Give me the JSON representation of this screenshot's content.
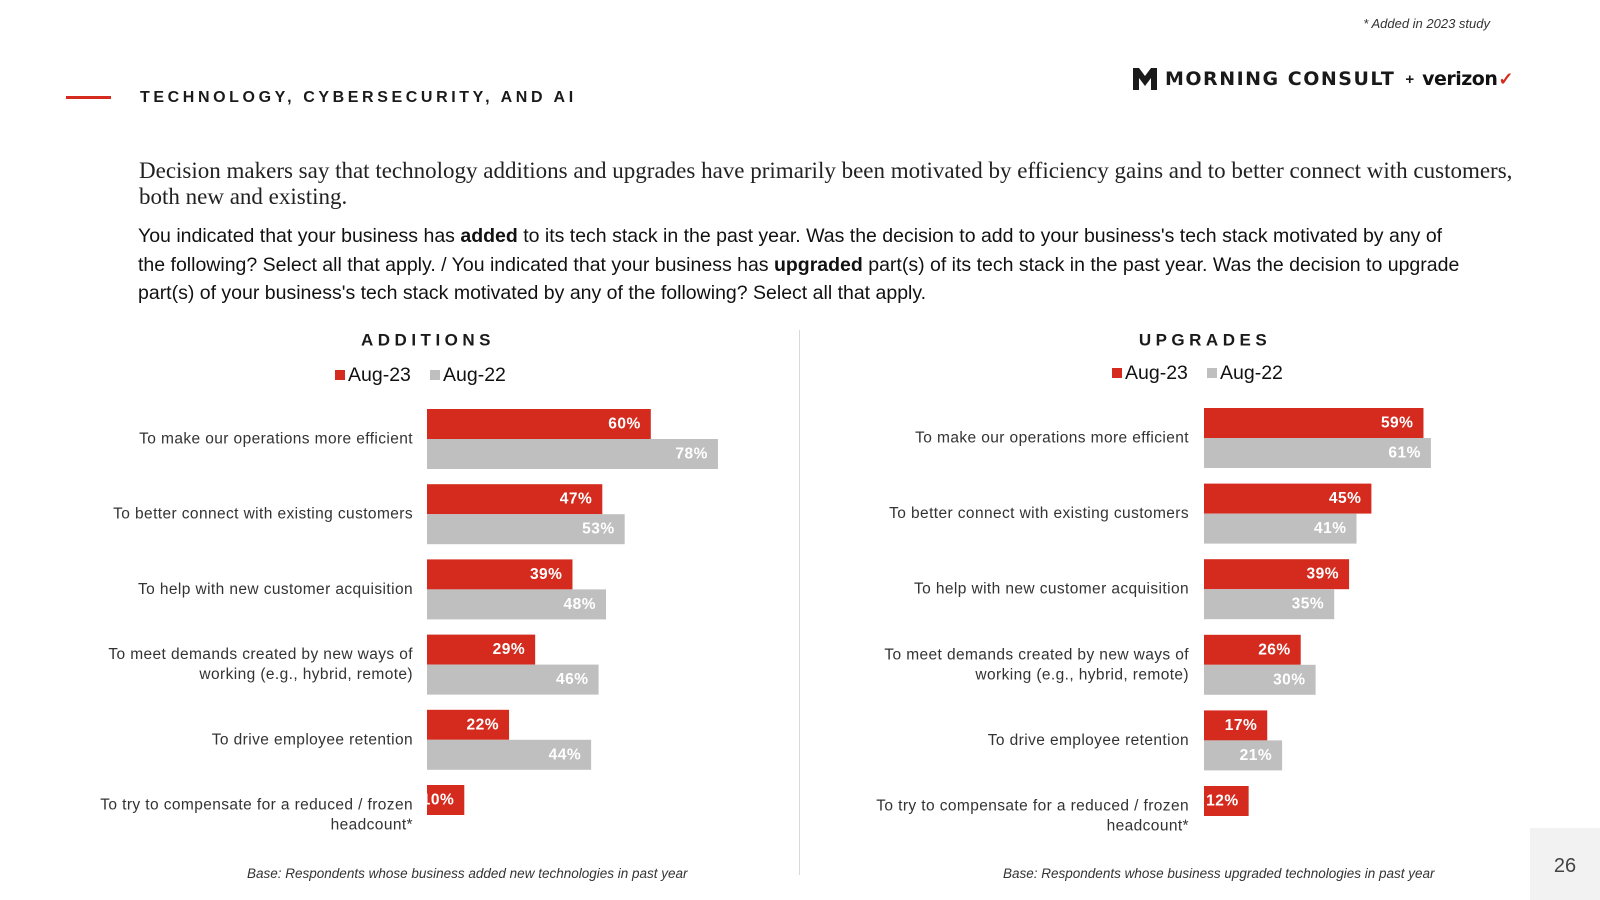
{
  "header": {
    "footnote": "* Added in 2023 study",
    "logo_brand": "MORNING CONSULT",
    "logo_plus": "+",
    "logo_partner": "verizon",
    "logo_check": "✓",
    "section_title": "TECHNOLOGY, CYBERSECURITY, AND AI"
  },
  "headline": "Decision makers say that technology additions and upgrades have primarily been motivated by efficiency gains and to better connect with customers, both new and existing.",
  "question": {
    "p1": "You indicated that your business has ",
    "b1": "added",
    "p2": " to its tech stack in the past year. Was the decision to add to your business's tech stack motivated by any of the following? Select all that apply. / You indicated that your business has ",
    "b2": "upgraded",
    "p3": " part(s) of its tech stack in the past year. Was the decision to upgrade part(s) of your business's tech stack motivated by any of the following? Select all that apply."
  },
  "colors": {
    "aug23": "#d52b1e",
    "aug22": "#bfbfbf",
    "accent": "#d52b1e"
  },
  "chart_data": [
    {
      "type": "bar",
      "orientation": "horizontal",
      "title": "ADDITIONS",
      "categories": [
        [
          "To make our operations more efficient"
        ],
        [
          "To better connect with existing customers"
        ],
        [
          "To help with new customer acquisition"
        ],
        [
          "To meet demands created by new ways of",
          "working (e.g., hybrid, remote)"
        ],
        [
          "To drive employee retention"
        ],
        [
          "To try to compensate for a reduced / frozen",
          "headcount*"
        ]
      ],
      "series": [
        {
          "name": "Aug-23",
          "values": [
            60,
            47,
            39,
            29,
            22,
            10
          ],
          "labels": [
            "60%",
            "47%",
            "39%",
            "29%",
            "22%",
            "10%"
          ]
        },
        {
          "name": "Aug-22",
          "values": [
            78,
            53,
            48,
            46,
            44,
            null
          ],
          "labels": [
            "78%",
            "53%",
            "48%",
            "46%",
            "44%",
            null
          ]
        }
      ],
      "unit": "%",
      "base_note": "Base: Respondents whose business added new technologies in past year"
    },
    {
      "type": "bar",
      "orientation": "horizontal",
      "title": "UPGRADES",
      "categories": [
        [
          "To make our operations more efficient"
        ],
        [
          "To better connect with existing customers"
        ],
        [
          "To help with new customer acquisition"
        ],
        [
          "To meet demands created by new ways of",
          "working (e.g., hybrid, remote)"
        ],
        [
          "To drive employee retention"
        ],
        [
          "To try to compensate for a reduced / frozen",
          "headcount*"
        ]
      ],
      "series": [
        {
          "name": "Aug-23",
          "values": [
            59,
            45,
            39,
            26,
            17,
            12
          ],
          "labels": [
            "59%",
            "45%",
            "39%",
            "26%",
            "17%",
            "12%"
          ]
        },
        {
          "name": "Aug-22",
          "values": [
            61,
            41,
            35,
            30,
            21,
            null
          ],
          "labels": [
            "61%",
            "41%",
            "35%",
            "30%",
            "21%",
            null
          ]
        }
      ],
      "unit": "%",
      "base_note": "Base: Respondents whose business upgraded technologies in past year"
    }
  ],
  "page_number": "26"
}
